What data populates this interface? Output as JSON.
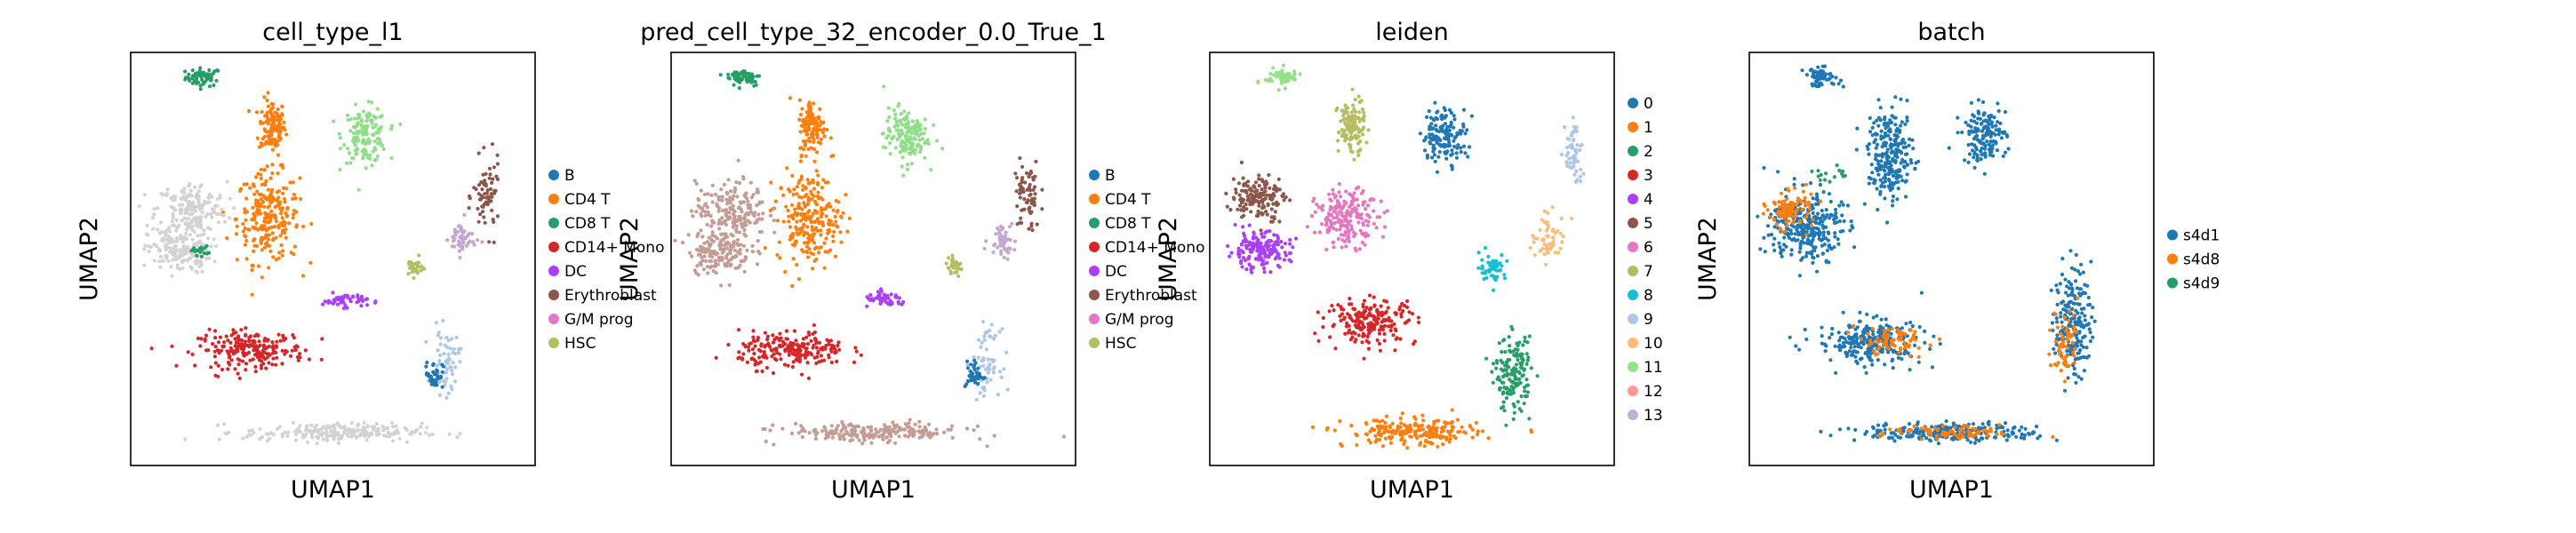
{
  "chart_data": [
    {
      "type": "scatter",
      "title": "cell_type_l1",
      "xlabel": "UMAP1",
      "ylabel": "UMAP2",
      "grid": false,
      "legend_position": "right",
      "legend": [
        {
          "label": "B",
          "color": "#1f77b4"
        },
        {
          "label": "CD4 T",
          "color": "#ff7f0e"
        },
        {
          "label": "CD8 T",
          "color": "#279e68"
        },
        {
          "label": "CD14+ Mono",
          "color": "#d62728"
        },
        {
          "label": "DC",
          "color": "#aa40fc"
        },
        {
          "label": "Erythroblast",
          "color": "#8c564b"
        },
        {
          "label": "G/M prog",
          "color": "#e377c2"
        },
        {
          "label": "HSC",
          "color": "#b5bd61"
        }
      ],
      "regions": [
        {
          "color": "#279e68",
          "c": [
            0.18,
            0.94
          ],
          "r": [
            0.04,
            0.02
          ],
          "n": 60
        },
        {
          "color": "#ff7f0e",
          "c": [
            0.35,
            0.82
          ],
          "r": [
            0.03,
            0.06
          ],
          "n": 120
        },
        {
          "color": "#ff7f0e",
          "c": [
            0.34,
            0.6
          ],
          "r": [
            0.07,
            0.1
          ],
          "n": 240
        },
        {
          "color": "#90de89",
          "c": [
            0.58,
            0.8
          ],
          "r": [
            0.05,
            0.06
          ],
          "n": 150
        },
        {
          "color": "#d3d3d3",
          "c": [
            0.15,
            0.62
          ],
          "r": [
            0.08,
            0.06
          ],
          "n": 180
        },
        {
          "color": "#d3d3d3",
          "c": [
            0.12,
            0.52
          ],
          "r": [
            0.07,
            0.05
          ],
          "n": 170
        },
        {
          "color": "#279e68",
          "c": [
            0.17,
            0.52
          ],
          "r": [
            0.02,
            0.01
          ],
          "n": 20
        },
        {
          "color": "#d62728",
          "c": [
            0.3,
            0.28
          ],
          "r": [
            0.12,
            0.04
          ],
          "n": 220
        },
        {
          "color": "#aa40fc",
          "c": [
            0.53,
            0.4
          ],
          "r": [
            0.05,
            0.015
          ],
          "n": 50
        },
        {
          "color": "#b5bd61",
          "c": [
            0.7,
            0.48
          ],
          "r": [
            0.02,
            0.02
          ],
          "n": 30
        },
        {
          "color": "#8c564b",
          "c": [
            0.88,
            0.65
          ],
          "r": [
            0.03,
            0.08
          ],
          "n": 70
        },
        {
          "color": "#c4a6d2",
          "c": [
            0.82,
            0.55
          ],
          "r": [
            0.03,
            0.04
          ],
          "n": 50
        },
        {
          "color": "#aec7e8",
          "c": [
            0.78,
            0.25
          ],
          "r": [
            0.03,
            0.07
          ],
          "n": 60
        },
        {
          "color": "#1f77b4",
          "c": [
            0.75,
            0.22
          ],
          "r": [
            0.02,
            0.03
          ],
          "n": 40
        },
        {
          "color": "#d3d3d3",
          "c": [
            0.5,
            0.08
          ],
          "r": [
            0.2,
            0.02
          ],
          "n": 220
        }
      ]
    },
    {
      "type": "scatter",
      "title": "pred_cell_type_32_encoder_0.0_True_1",
      "xlabel": "UMAP1",
      "ylabel": "UMAP2",
      "grid": false,
      "legend_position": "right",
      "legend": [
        {
          "label": "B",
          "color": "#1f77b4"
        },
        {
          "label": "CD4 T",
          "color": "#ff7f0e"
        },
        {
          "label": "CD8 T",
          "color": "#279e68"
        },
        {
          "label": "CD14+ Mono",
          "color": "#d62728"
        },
        {
          "label": "DC",
          "color": "#aa40fc"
        },
        {
          "label": "Erythroblast",
          "color": "#8c564b"
        },
        {
          "label": "G/M prog",
          "color": "#e377c2"
        },
        {
          "label": "HSC",
          "color": "#b5bd61"
        }
      ],
      "regions": [
        {
          "color": "#279e68",
          "c": [
            0.18,
            0.94
          ],
          "r": [
            0.04,
            0.02
          ],
          "n": 60
        },
        {
          "color": "#ff7f0e",
          "c": [
            0.35,
            0.82
          ],
          "r": [
            0.03,
            0.06
          ],
          "n": 120
        },
        {
          "color": "#ff7f0e",
          "c": [
            0.34,
            0.6
          ],
          "r": [
            0.07,
            0.1
          ],
          "n": 240
        },
        {
          "color": "#90de89",
          "c": [
            0.58,
            0.8
          ],
          "r": [
            0.05,
            0.06
          ],
          "n": 150
        },
        {
          "color": "#c49c94",
          "c": [
            0.15,
            0.62
          ],
          "r": [
            0.08,
            0.06
          ],
          "n": 180
        },
        {
          "color": "#c49c94",
          "c": [
            0.12,
            0.52
          ],
          "r": [
            0.07,
            0.05
          ],
          "n": 170
        },
        {
          "color": "#d62728",
          "c": [
            0.3,
            0.28
          ],
          "r": [
            0.12,
            0.04
          ],
          "n": 220
        },
        {
          "color": "#aa40fc",
          "c": [
            0.53,
            0.4
          ],
          "r": [
            0.05,
            0.015
          ],
          "n": 50
        },
        {
          "color": "#b5bd61",
          "c": [
            0.7,
            0.48
          ],
          "r": [
            0.02,
            0.02
          ],
          "n": 30
        },
        {
          "color": "#8c564b",
          "c": [
            0.88,
            0.65
          ],
          "r": [
            0.03,
            0.08
          ],
          "n": 70
        },
        {
          "color": "#c4a6d2",
          "c": [
            0.82,
            0.55
          ],
          "r": [
            0.03,
            0.04
          ],
          "n": 50
        },
        {
          "color": "#aec7e8",
          "c": [
            0.78,
            0.25
          ],
          "r": [
            0.03,
            0.07
          ],
          "n": 60
        },
        {
          "color": "#1f77b4",
          "c": [
            0.75,
            0.22
          ],
          "r": [
            0.02,
            0.03
          ],
          "n": 40
        },
        {
          "color": "#c49c94",
          "c": [
            0.5,
            0.08
          ],
          "r": [
            0.2,
            0.02
          ],
          "n": 220
        }
      ]
    },
    {
      "type": "scatter",
      "title": "leiden",
      "xlabel": "UMAP1",
      "ylabel": "UMAP2",
      "grid": false,
      "legend_position": "right",
      "legend": [
        {
          "label": "0",
          "color": "#1f77b4"
        },
        {
          "label": "1",
          "color": "#ff7f0e"
        },
        {
          "label": "2",
          "color": "#279e68"
        },
        {
          "label": "3",
          "color": "#d62728"
        },
        {
          "label": "4",
          "color": "#aa40fc"
        },
        {
          "label": "5",
          "color": "#8c564b"
        },
        {
          "label": "6",
          "color": "#e377c2"
        },
        {
          "label": "7",
          "color": "#b5bd61"
        },
        {
          "label": "8",
          "color": "#17becf"
        },
        {
          "label": "9",
          "color": "#aec7e8"
        },
        {
          "label": "10",
          "color": "#ffbb78"
        },
        {
          "label": "11",
          "color": "#98df8a"
        },
        {
          "label": "12",
          "color": "#ff9896"
        },
        {
          "label": "13",
          "color": "#c5b0d5"
        }
      ],
      "regions": [
        {
          "color": "#98df8a",
          "c": [
            0.18,
            0.94
          ],
          "r": [
            0.04,
            0.02
          ],
          "n": 60
        },
        {
          "color": "#b5bd61",
          "c": [
            0.35,
            0.82
          ],
          "r": [
            0.03,
            0.06
          ],
          "n": 120
        },
        {
          "color": "#e377c2",
          "c": [
            0.34,
            0.6
          ],
          "r": [
            0.07,
            0.06
          ],
          "n": 200
        },
        {
          "color": "#1f77b4",
          "c": [
            0.58,
            0.8
          ],
          "r": [
            0.05,
            0.06
          ],
          "n": 150
        },
        {
          "color": "#8c564b",
          "c": [
            0.12,
            0.65
          ],
          "r": [
            0.06,
            0.05
          ],
          "n": 150
        },
        {
          "color": "#aa40fc",
          "c": [
            0.12,
            0.52
          ],
          "r": [
            0.07,
            0.04
          ],
          "n": 170
        },
        {
          "color": "#d62728",
          "c": [
            0.4,
            0.35
          ],
          "r": [
            0.1,
            0.05
          ],
          "n": 200
        },
        {
          "color": "#17becf",
          "c": [
            0.7,
            0.48
          ],
          "r": [
            0.03,
            0.03
          ],
          "n": 50
        },
        {
          "color": "#ffbb78",
          "c": [
            0.84,
            0.55
          ],
          "r": [
            0.04,
            0.05
          ],
          "n": 60
        },
        {
          "color": "#aec7e8",
          "c": [
            0.9,
            0.75
          ],
          "r": [
            0.02,
            0.08
          ],
          "n": 60
        },
        {
          "color": "#279e68",
          "c": [
            0.75,
            0.22
          ],
          "r": [
            0.04,
            0.08
          ],
          "n": 160
        },
        {
          "color": "#ff7f0e",
          "c": [
            0.5,
            0.08
          ],
          "r": [
            0.15,
            0.03
          ],
          "n": 220
        }
      ]
    },
    {
      "type": "scatter",
      "title": "batch",
      "xlabel": "UMAP1",
      "ylabel": "UMAP2",
      "grid": false,
      "legend_position": "right",
      "legend": [
        {
          "label": "s4d1",
          "color": "#1f77b4"
        },
        {
          "label": "s4d8",
          "color": "#ff7f0e"
        },
        {
          "label": "s4d9",
          "color": "#279e68"
        }
      ],
      "regions": [
        {
          "color": "#1f77b4",
          "c": [
            0.18,
            0.94
          ],
          "r": [
            0.04,
            0.02
          ],
          "n": 60
        },
        {
          "color": "#1f77b4",
          "c": [
            0.35,
            0.75
          ],
          "r": [
            0.05,
            0.1
          ],
          "n": 240
        },
        {
          "color": "#1f77b4",
          "c": [
            0.58,
            0.8
          ],
          "r": [
            0.05,
            0.06
          ],
          "n": 150
        },
        {
          "color": "#1f77b4",
          "c": [
            0.14,
            0.58
          ],
          "r": [
            0.08,
            0.08
          ],
          "n": 300
        },
        {
          "color": "#ff7f0e",
          "c": [
            0.1,
            0.62
          ],
          "r": [
            0.05,
            0.04
          ],
          "n": 90
        },
        {
          "color": "#1f77b4",
          "c": [
            0.3,
            0.3
          ],
          "r": [
            0.12,
            0.05
          ],
          "n": 250
        },
        {
          "color": "#ff7f0e",
          "c": [
            0.35,
            0.3
          ],
          "r": [
            0.08,
            0.03
          ],
          "n": 70
        },
        {
          "color": "#1f77b4",
          "c": [
            0.8,
            0.35
          ],
          "r": [
            0.04,
            0.12
          ],
          "n": 200
        },
        {
          "color": "#ff7f0e",
          "c": [
            0.78,
            0.3
          ],
          "r": [
            0.03,
            0.08
          ],
          "n": 60
        },
        {
          "color": "#1f77b4",
          "c": [
            0.5,
            0.08
          ],
          "r": [
            0.2,
            0.02
          ],
          "n": 240
        },
        {
          "color": "#ff7f0e",
          "c": [
            0.5,
            0.08
          ],
          "r": [
            0.15,
            0.015
          ],
          "n": 80
        },
        {
          "color": "#279e68",
          "c": [
            0.2,
            0.7
          ],
          "r": [
            0.05,
            0.02
          ],
          "n": 15
        }
      ]
    }
  ]
}
